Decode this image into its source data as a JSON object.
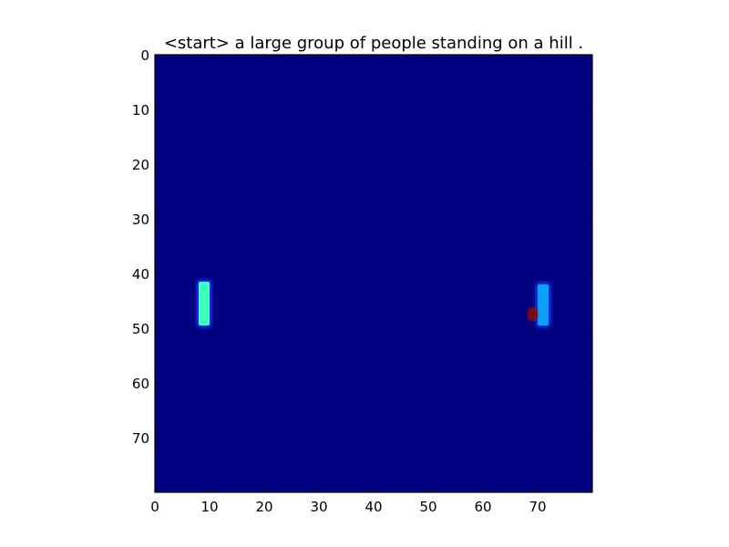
{
  "chart_data": {
    "type": "heatmap",
    "title": "<start> a large group of people standing on a hill .",
    "xlabel": "",
    "ylabel": "",
    "xlim": [
      0,
      80
    ],
    "ylim": [
      80,
      0
    ],
    "x_ticks": [
      0,
      10,
      20,
      30,
      40,
      50,
      60,
      70
    ],
    "x_tick_labels": [
      "0",
      "10",
      "20",
      "30",
      "40",
      "50",
      "60",
      "70"
    ],
    "y_ticks": [
      0,
      10,
      20,
      30,
      40,
      50,
      60,
      70
    ],
    "y_tick_labels": [
      "0",
      "10",
      "20",
      "30",
      "40",
      "50",
      "60",
      "70"
    ],
    "grid": false,
    "colormap": "jet",
    "background_color": "#000080",
    "regions": [
      {
        "x": [
          8,
          10
        ],
        "y": [
          41.5,
          49.5
        ],
        "value": 0.45,
        "color": "#40ffc0"
      },
      {
        "x": [
          70,
          72
        ],
        "y": [
          42,
          49.5
        ],
        "value": 0.32,
        "color": "#0aa0ff"
      },
      {
        "x": [
          68.6,
          69.6
        ],
        "y": [
          46.6,
          48.2
        ],
        "value": 1.0,
        "color": "#800000"
      }
    ]
  }
}
